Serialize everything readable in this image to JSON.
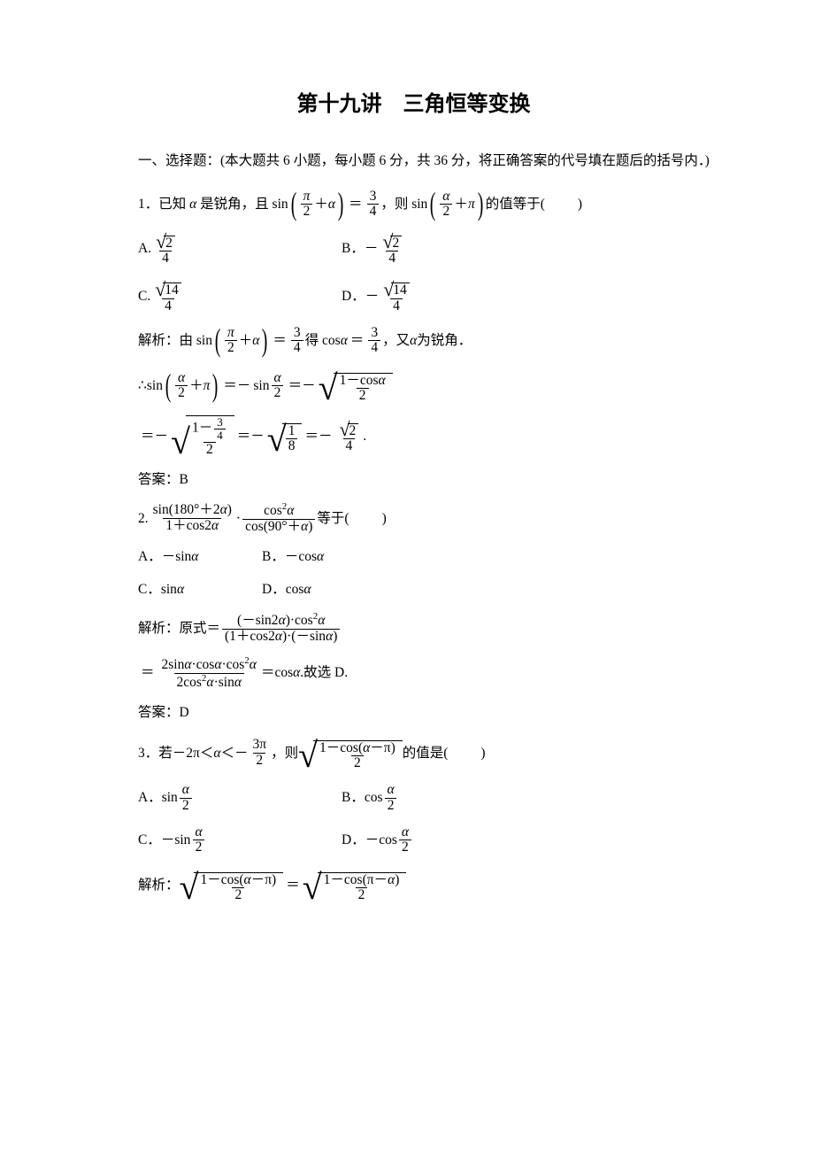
{
  "title": "第十九讲　三角恒等变换",
  "intro": "一、选择题：(本大题共 6 小题，每小题 6 分，共 36 分，将正确答案的代号填在题后的括号内．)",
  "q1": {
    "stem_a": "1．已知",
    "stem_b": "是锐角，且 sin",
    "stem_eq": "，则 sin",
    "stem_tail": "的值等于",
    "blank": "(　　)",
    "A_lbl": "A.",
    "B_lbl": "B．",
    "C_lbl": "C.",
    "D_lbl": "D．",
    "v2": "2",
    "v4": "4",
    "v14": "14",
    "neg": "－",
    "sol_a": "解析：由 sin",
    "sol_b": "得 cos",
    "sol_c": "，又",
    "sol_d": "为锐角．",
    "therefore": "∴sin",
    "v3": "3",
    "v1": "1",
    "v8": "8",
    "ans": "答案：B"
  },
  "q2": {
    "stem_a": "2.",
    "stem_mid": "·",
    "stem_tail": "等于",
    "blank": "(　　)",
    "sin180": "sin(180°＋2",
    "cos90": "cos(90°＋",
    "cos2a": "cos",
    "1cos2a": "1＋cos2",
    "A": "A．－sin",
    "B": "B．－cos",
    "C": "C．sin",
    "D": "D．cos",
    "sol": "解析：原式＝",
    "neg_sin2a": "(－sin2",
    "cos2a_top": ")·cos",
    "den_l": "(1＋cos2",
    "den_r": ")·(－sin",
    "l2_num": "2sin",
    "l2_mid": "·cos",
    "l2_mid2": "·cos",
    "l2_den": "2cos",
    "l2_den2": "·sin",
    "cosa_end": "＝cos",
    "end": ".故选 D.",
    "ans": "答案：D"
  },
  "q3": {
    "stem_a": "3．若－2π＜",
    "stem_b": "＜－",
    "stem_c": "，则",
    "stem_d": "的值是",
    "blank": "(　　)",
    "sqrt_num": "1－cos(",
    "sqrt_num2": "－π)",
    "A": "A．sin",
    "B": "B．cos",
    "C": "C．－sin",
    "D": "D．－cos",
    "sol": "解析：",
    "sol_r": "1－cos(π－",
    "v2": "2",
    "v3pi2": "3π"
  },
  "sym": {
    "alpha": "α",
    "pi": "π"
  }
}
